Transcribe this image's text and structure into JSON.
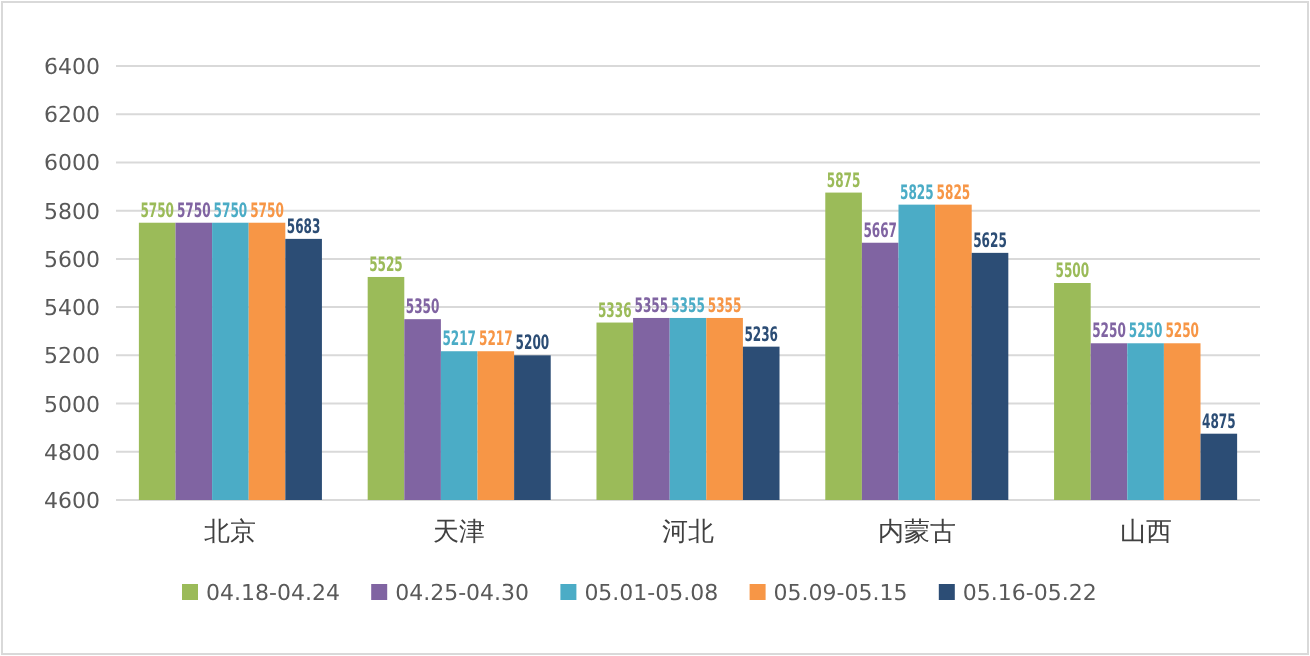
{
  "chart_data": {
    "type": "bar",
    "categories": [
      "北京",
      "天津",
      "河北",
      "内蒙古",
      "山西"
    ],
    "series": [
      {
        "name": "04.18-04.24",
        "color": "#9bbb59",
        "values": [
          5750,
          5525,
          5336,
          5875,
          5500
        ]
      },
      {
        "name": "04.25-04.30",
        "color": "#8064a2",
        "values": [
          5750,
          5350,
          5355,
          5667,
          5250
        ]
      },
      {
        "name": "05.01-05.08",
        "color": "#4bacc6",
        "values": [
          5750,
          5217,
          5355,
          5825,
          5250
        ]
      },
      {
        "name": "05.09-05.15",
        "color": "#f79646",
        "values": [
          5750,
          5217,
          5355,
          5825,
          5250
        ]
      },
      {
        "name": "05.16-05.22",
        "color": "#2c4d75",
        "values": [
          5683,
          5200,
          5236,
          5625,
          4875
        ]
      }
    ],
    "ylim": [
      4600,
      6400
    ],
    "yticks": [
      4600,
      4800,
      5000,
      5200,
      5400,
      5600,
      5800,
      6000,
      6200,
      6400
    ],
    "grid": "y",
    "legend": "bottom",
    "data_labels": true
  }
}
